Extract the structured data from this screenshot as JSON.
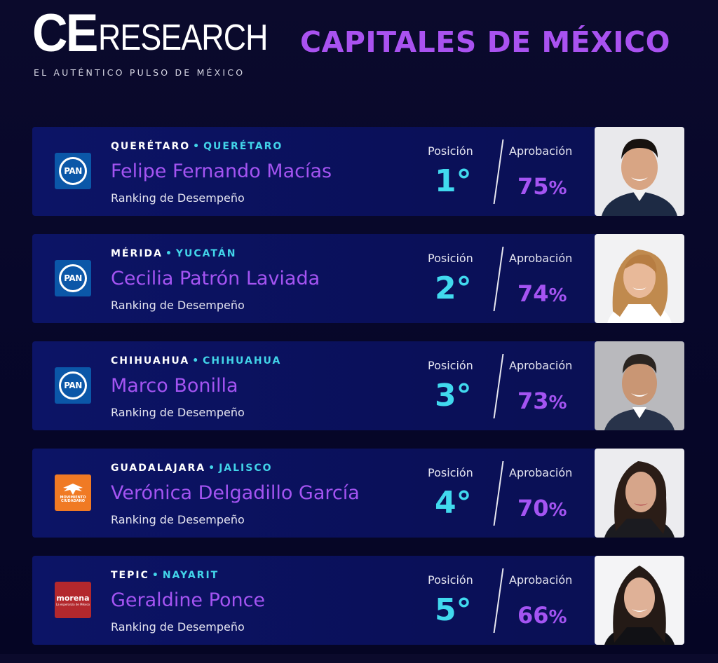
{
  "header": {
    "logo_ce": "CE",
    "logo_research": "RESEARCH",
    "logo_tagline": "EL AUTÉNTICO PULSO DE MÉXICO",
    "title": "CAPITALES DE MÉXICO"
  },
  "labels": {
    "position": "Posición",
    "approval": "Aprobación",
    "subtitle": "Ranking de Desempeño",
    "dot": "•",
    "percent": "%"
  },
  "colors": {
    "background": "#07072a",
    "card": "#0c1466",
    "accent_purple": "#a454f2",
    "accent_cyan": "#41d9ee"
  },
  "entries": [
    {
      "city": "QUERÉTARO",
      "state": "QUERÉTARO",
      "name": "Felipe Fernando Macías",
      "party": "PAN",
      "party_icon": "pan-logo-icon",
      "position": "1°",
      "approval": "75",
      "photo": "man-dark-hair-smiling-photo"
    },
    {
      "city": "MÉRIDA",
      "state": "YUCATÁN",
      "name": "Cecilia Patrón Laviada",
      "party": "PAN",
      "party_icon": "pan-logo-icon",
      "position": "2°",
      "approval": "74",
      "photo": "woman-blonde-smiling-photo"
    },
    {
      "city": "CHIHUAHUA",
      "state": "CHIHUAHUA",
      "name": "Marco Bonilla",
      "party": "PAN",
      "party_icon": "pan-logo-icon",
      "position": "3°",
      "approval": "73",
      "photo": "man-suit-smiling-photo"
    },
    {
      "city": "GUADALAJARA",
      "state": "JALISCO",
      "name": "Verónica Delgadillo García",
      "party": "MOVIMIENTO CIUDADANO",
      "party_icon": "movimiento-ciudadano-logo-icon",
      "position": "4°",
      "approval": "70",
      "photo": "woman-dark-hair-photo"
    },
    {
      "city": "TEPIC",
      "state": "NAYARIT",
      "name": "Geraldine Ponce",
      "party": "morena",
      "party_sub": "La esperanza de México",
      "party_icon": "morena-logo-icon",
      "position": "5°",
      "approval": "66",
      "photo": "woman-long-dark-hair-photo"
    }
  ]
}
